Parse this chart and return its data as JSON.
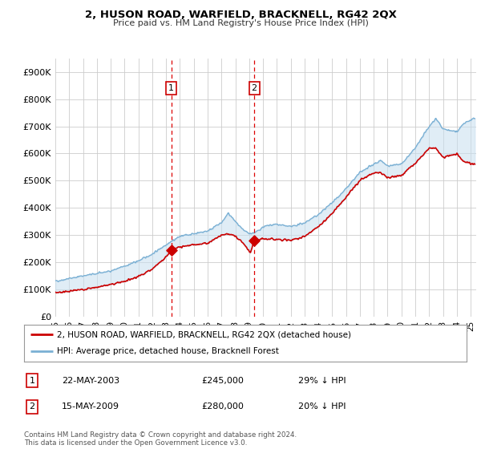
{
  "title": "2, HUSON ROAD, WARFIELD, BRACKNELL, RG42 2QX",
  "subtitle": "Price paid vs. HM Land Registry's House Price Index (HPI)",
  "ylim": [
    0,
    950000
  ],
  "xlim_start": 1995.0,
  "xlim_end": 2025.4,
  "hpi_color": "#7ab0d4",
  "price_color": "#cc0000",
  "sale1_date": 2003.38,
  "sale1_price": 245000,
  "sale2_date": 2009.37,
  "sale2_price": 280000,
  "legend_entries": [
    "2, HUSON ROAD, WARFIELD, BRACKNELL, RG42 2QX (detached house)",
    "HPI: Average price, detached house, Bracknell Forest"
  ],
  "annotation1": [
    "1",
    "22-MAY-2003",
    "£245,000",
    "29% ↓ HPI"
  ],
  "annotation2": [
    "2",
    "15-MAY-2009",
    "£280,000",
    "20% ↓ HPI"
  ],
  "footnote": "Contains HM Land Registry data © Crown copyright and database right 2024.\nThis data is licensed under the Open Government Licence v3.0.",
  "yticks": [
    0,
    100000,
    200000,
    300000,
    400000,
    500000,
    600000,
    700000,
    800000,
    900000
  ],
  "ytick_labels": [
    "£0",
    "£100K",
    "£200K",
    "£300K",
    "£400K",
    "£500K",
    "£600K",
    "£700K",
    "£800K",
    "£900K"
  ],
  "xtick_years": [
    1995,
    1996,
    1997,
    1998,
    1999,
    2000,
    2001,
    2002,
    2003,
    2004,
    2005,
    2006,
    2007,
    2008,
    2009,
    2010,
    2011,
    2012,
    2013,
    2014,
    2015,
    2016,
    2017,
    2018,
    2019,
    2020,
    2021,
    2022,
    2023,
    2024,
    2025
  ],
  "hpi_anchors_x": [
    1995,
    1996,
    1997,
    1998,
    1999,
    2000,
    2001,
    2002,
    2003,
    2004,
    2005,
    2006,
    2007,
    2007.5,
    2008,
    2008.5,
    2009,
    2009.5,
    2010,
    2011,
    2012,
    2013,
    2014,
    2015,
    2016,
    2017,
    2018,
    2018.5,
    2019,
    2020,
    2021,
    2022,
    2022.5,
    2023,
    2024,
    2024.5,
    2025.3
  ],
  "hpi_anchors_y": [
    130000,
    140000,
    150000,
    158000,
    168000,
    185000,
    205000,
    230000,
    265000,
    295000,
    305000,
    315000,
    345000,
    380000,
    350000,
    320000,
    305000,
    310000,
    330000,
    340000,
    330000,
    345000,
    375000,
    420000,
    470000,
    530000,
    560000,
    575000,
    555000,
    560000,
    620000,
    700000,
    730000,
    690000,
    680000,
    710000,
    730000
  ],
  "price_anchors_x": [
    1995,
    1996,
    1997,
    1998,
    1999,
    2000,
    2001,
    2002,
    2003,
    2003.38,
    2004,
    2005,
    2006,
    2007,
    2007.5,
    2008,
    2008.5,
    2009,
    2009.1,
    2009.37,
    2010,
    2011,
    2012,
    2013,
    2014,
    2015,
    2016,
    2017,
    2018,
    2018.5,
    2019,
    2020,
    2021,
    2022,
    2022.5,
    2023,
    2024,
    2024.5,
    2025.3
  ],
  "price_anchors_y": [
    88000,
    93000,
    100000,
    108000,
    118000,
    130000,
    148000,
    175000,
    220000,
    245000,
    255000,
    265000,
    270000,
    300000,
    305000,
    295000,
    275000,
    240000,
    235000,
    280000,
    285000,
    285000,
    280000,
    295000,
    330000,
    380000,
    440000,
    500000,
    530000,
    530000,
    510000,
    520000,
    565000,
    620000,
    620000,
    585000,
    600000,
    570000,
    560000
  ],
  "background_color": "#ffffff",
  "grid_color": "#cccccc",
  "shade_color": "#c8dff0"
}
